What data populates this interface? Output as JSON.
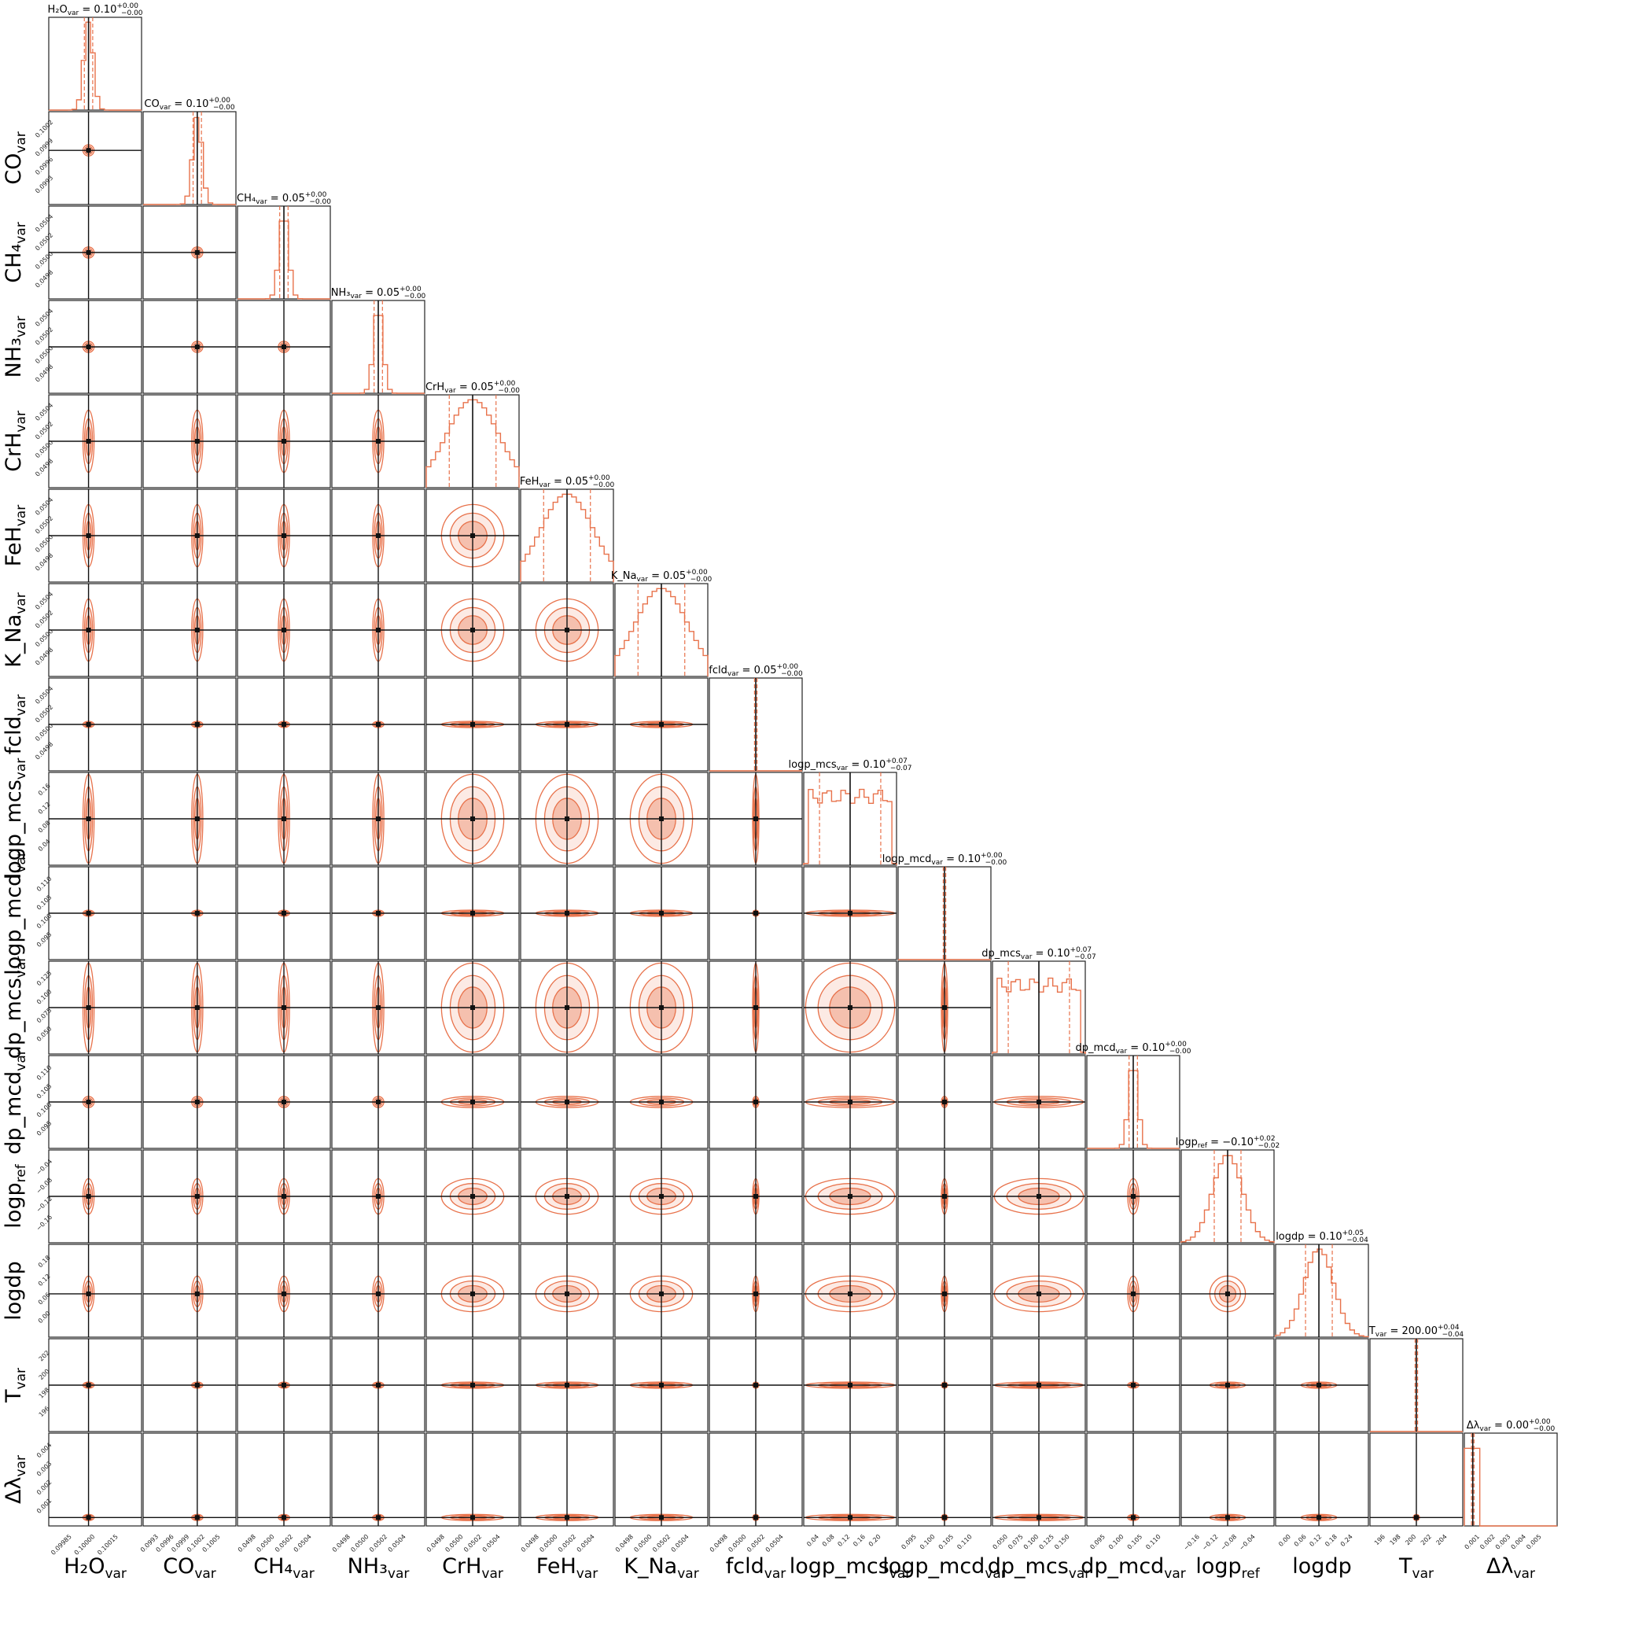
{
  "chart_data": {
    "type": "corner",
    "color": "#e8724b",
    "truth_color": "#111111",
    "parameters": [
      {
        "label": "H₂O",
        "sub": "var",
        "truth": 0.1,
        "title": "H₂O_var = 0.10 +0.00 −0.00",
        "median": 0.1,
        "plus": "0.00",
        "minus": "0.00",
        "range": [
          0.09985,
          0.1002
        ],
        "ticks": [
          "0.09985",
          "0.10000",
          "0.10015"
        ],
        "hist": "narrow"
      },
      {
        "label": "CO",
        "sub": "var",
        "truth": 0.1,
        "title": "CO_var = 0.10 +0.00 −0.00",
        "median": 0.1,
        "plus": "0.00",
        "minus": "0.00",
        "range": [
          0.0993,
          0.1005
        ],
        "ticks": [
          "0.0993",
          "0.0996",
          "0.0999",
          "0.1002",
          "0.1005"
        ],
        "hist": "narrow"
      },
      {
        "label": "CH₄",
        "sub": "var",
        "truth": 0.05,
        "title": "CH₄_var = 0.05 +0.00 −0.00",
        "median": 0.05,
        "plus": "0.00",
        "minus": "0.00",
        "range": [
          0.0496,
          0.0504
        ],
        "ticks": [
          "0.0498",
          "0.0500",
          "0.0502",
          "0.0504"
        ],
        "hist": "narrow"
      },
      {
        "label": "NH₃",
        "sub": "var",
        "truth": 0.05,
        "title": "NH₃_var = 0.05 +0.00 −0.00",
        "median": 0.05,
        "plus": "0.00",
        "minus": "0.00",
        "range": [
          0.0496,
          0.0504
        ],
        "ticks": [
          "0.0498",
          "0.0500",
          "0.0502",
          "0.0504"
        ],
        "hist": "narrow"
      },
      {
        "label": "CrH",
        "sub": "var",
        "truth": 0.05,
        "title": "CrH_var = 0.05 +0.00 −0.00",
        "median": 0.05,
        "plus": "0.00",
        "minus": "0.00",
        "range": [
          0.0496,
          0.0504
        ],
        "ticks": [
          "0.0498",
          "0.0500",
          "0.0502",
          "0.0504"
        ],
        "hist": "wide"
      },
      {
        "label": "FeH",
        "sub": "var",
        "truth": 0.05,
        "title": "FeH_var = 0.05 +0.00 −0.00",
        "median": 0.05,
        "plus": "0.00",
        "minus": "0.00",
        "range": [
          0.0496,
          0.0504
        ],
        "ticks": [
          "0.0498",
          "0.0500",
          "0.0502",
          "0.0504"
        ],
        "hist": "wide"
      },
      {
        "label": "K_Na",
        "sub": "var",
        "truth": 0.05,
        "title": "K_Na_var = 0.05 +0.00 −0.00",
        "median": 0.05,
        "plus": "0.00",
        "minus": "0.00",
        "range": [
          0.0496,
          0.0504
        ],
        "ticks": [
          "0.0498",
          "0.0500",
          "0.0502",
          "0.0504"
        ],
        "hist": "wide"
      },
      {
        "label": "fcld",
        "sub": "var",
        "truth": 0.05,
        "title": "fcld_var = 0.05 +0.00 −0.00",
        "median": 0.05,
        "plus": "0.00",
        "minus": "0.00",
        "range": [
          0.0496,
          0.0504
        ],
        "ticks": [
          "0.0498",
          "0.0500",
          "0.0502",
          "0.0504"
        ],
        "hist": "spike"
      },
      {
        "label": "logp_mcs",
        "sub": "var",
        "truth": 0.1,
        "title": "logp_mcs_var = 0.10 +0.07 −0.07",
        "median": 0.1,
        "plus": "0.07",
        "minus": "0.07",
        "range": [
          0.0,
          0.2
        ],
        "ticks": [
          "0.04",
          "0.08",
          "0.12",
          "0.16",
          "0.20"
        ],
        "hist": "flat"
      },
      {
        "label": "logp_mcd",
        "sub": "var",
        "truth": 0.1,
        "title": "logp_mcd_var = 0.10 +0.00 −0.00",
        "median": 0.1,
        "plus": "0.00",
        "minus": "0.00",
        "range": [
          0.09,
          0.11
        ],
        "ticks": [
          "0.095",
          "0.100",
          "0.105",
          "0.110"
        ],
        "hist": "spike"
      },
      {
        "label": "dp_mcs",
        "sub": "var",
        "truth": 0.1,
        "title": "dp_mcs_var = 0.10 +0.07 −0.07",
        "median": 0.1,
        "plus": "0.07",
        "minus": "0.07",
        "range": [
          0.035,
          0.165
        ],
        "ticks": [
          "0.050",
          "0.075",
          "0.100",
          "0.125",
          "0.150"
        ],
        "hist": "flat"
      },
      {
        "label": "dp_mcd",
        "sub": "var",
        "truth": 0.1,
        "title": "dp_mcd_var = 0.10 +0.00 −0.00",
        "median": 0.1,
        "plus": "0.00",
        "minus": "0.00",
        "range": [
          0.09,
          0.11
        ],
        "ticks": [
          "0.095",
          "0.100",
          "0.105",
          "0.110"
        ],
        "hist": "narrow"
      },
      {
        "label": "logp",
        "sub": "ref",
        "truth": -0.1,
        "title": "logp_ref = −0.10 +0.02 −0.02",
        "median": -0.1,
        "plus": "0.02",
        "minus": "0.02",
        "range": [
          -0.18,
          -0.02
        ],
        "ticks": [
          "−0.16",
          "−0.12",
          "−0.08",
          "−0.04"
        ],
        "hist": "normal"
      },
      {
        "label": "logdp",
        "sub": "",
        "truth": 0.1,
        "title": "logdp = 0.10 +0.05 −0.04",
        "median": 0.1,
        "plus": "0.05",
        "minus": "0.04",
        "range": [
          -0.04,
          0.26
        ],
        "ticks": [
          "0.00",
          "0.06",
          "0.12",
          "0.18",
          "0.24"
        ],
        "hist": "normal"
      },
      {
        "label": "T",
        "sub": "var",
        "truth": 200.0,
        "title": "T_var = 200.00 +0.04 −0.04",
        "median": 200.0,
        "plus": "0.04",
        "minus": "0.04",
        "range": [
          194.5,
          205.5
        ],
        "ticks": [
          "196",
          "198",
          "200",
          "202",
          "204"
        ],
        "hist": "spike"
      },
      {
        "label": "Δλ",
        "sub": "var",
        "truth": 0.0,
        "title": "Δλ_var = 0.00 +0.00 −0.00",
        "median": 0.0,
        "plus": "0.00",
        "minus": "0.00",
        "range": [
          -0.0005,
          0.005
        ],
        "ticks": [
          "0.001",
          "0.002",
          "0.003",
          "0.004",
          "0.005"
        ],
        "hist": "spike"
      }
    ]
  }
}
